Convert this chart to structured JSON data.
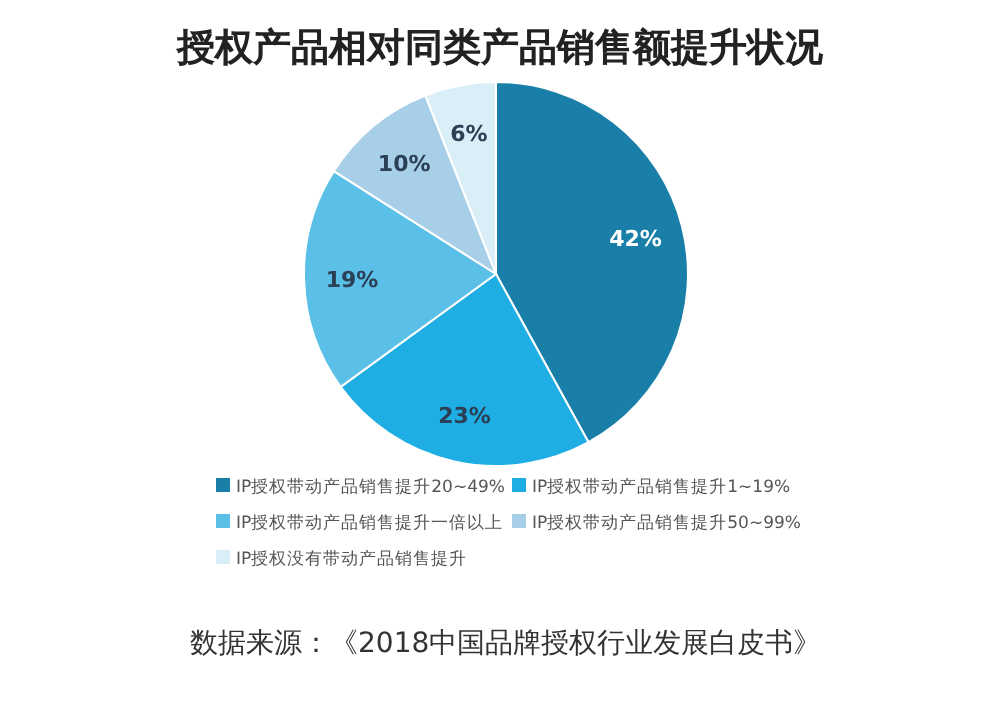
{
  "chart_data": {
    "type": "pie",
    "title": "授权产品相对同类产品销售额提升状况",
    "categories": [
      "IP授权带动产品销售提升20~49%",
      "IP授权带动产品销售提升1~19%",
      "IP授权带动产品销售提升一倍以上",
      "IP授权带动产品销售提升50~99%",
      "IP授权没有带动产品销售提升"
    ],
    "values": [
      42,
      23,
      19,
      10,
      6
    ],
    "colors": [
      "#1a7fa8",
      "#1eaee4",
      "#5bc0e8",
      "#a8cfe8",
      "#daeef8"
    ],
    "value_labels": [
      "42%",
      "23%",
      "19%",
      "10%",
      "6%"
    ],
    "legend": "bottom",
    "annotations": [
      "数据来源：《2018中国品牌授权行业发展白皮书》"
    ]
  }
}
